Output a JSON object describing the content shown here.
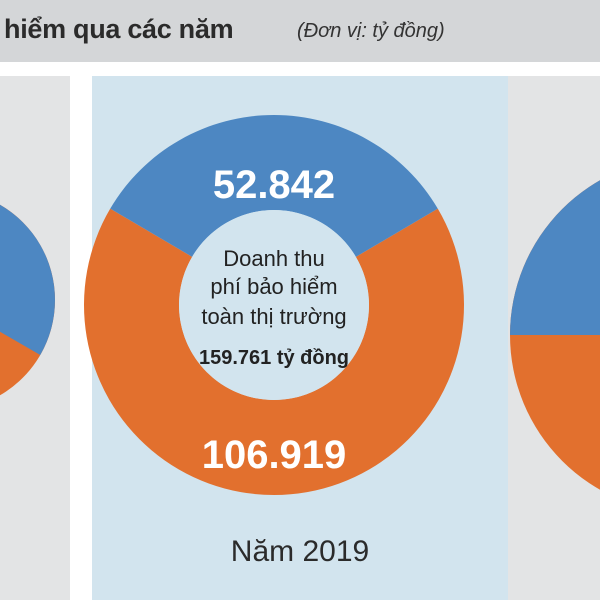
{
  "header": {
    "title": "hiểm qua các năm",
    "unit": "(Đơn vị: tỷ đồng)"
  },
  "colors": {
    "blue": "#4d87c2",
    "orange": "#e2702e",
    "center": "#d2e4ee",
    "label": "#ffffff",
    "center_text": "#222222"
  },
  "chart_data": [
    {
      "type": "pie",
      "title": "",
      "year_label": "Năm 2019",
      "slices": [
        {
          "value": 52842,
          "label": "52.842",
          "color": "#4d87c2"
        },
        {
          "value": 106919,
          "label": "106.919",
          "color": "#e2702e"
        }
      ],
      "center_text": [
        "Doanh thu",
        "phí bảo hiểm",
        "toàn thị trường",
        "159.761 tỷ đồng"
      ],
      "total": 159761
    }
  ]
}
